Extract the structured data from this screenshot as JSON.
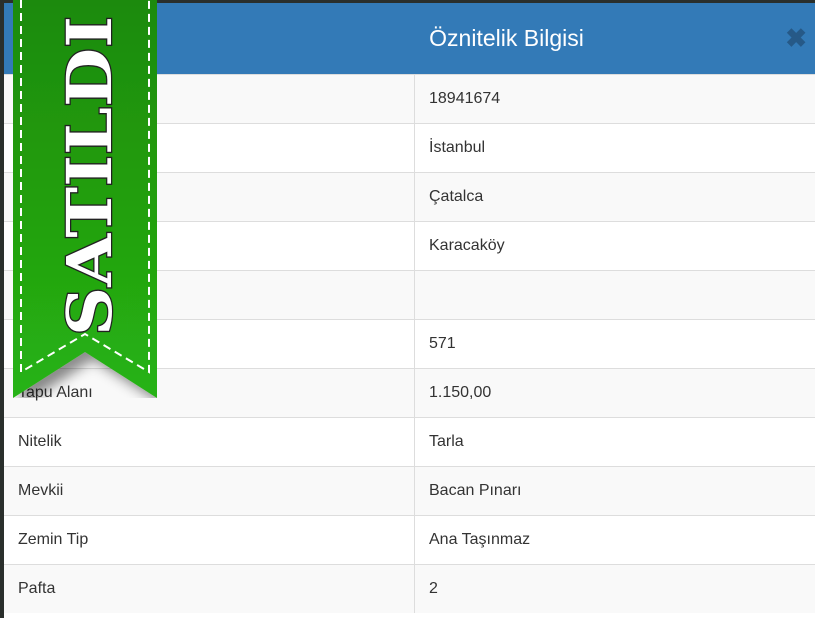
{
  "modal": {
    "title": "Öznitelik Bilgisi",
    "close_icon": "close-icon"
  },
  "badge": {
    "text": "SATILDI",
    "color": "#22a510"
  },
  "rows": [
    {
      "label": "",
      "value": "18941674"
    },
    {
      "label": "",
      "value": "İstanbul"
    },
    {
      "label": "",
      "value": "Çatalca"
    },
    {
      "label": "",
      "value": "Karacaköy"
    },
    {
      "label": "",
      "value": ""
    },
    {
      "label": "",
      "value": "571"
    },
    {
      "label": "Tapu Alanı",
      "value": "1.150,00"
    },
    {
      "label": "Nitelik",
      "value": "Tarla"
    },
    {
      "label": "Mevkii",
      "value": "Bacan Pınarı"
    },
    {
      "label": "Zemin Tip",
      "value": "Ana Taşınmaz"
    },
    {
      "label": "Pafta",
      "value": "2"
    }
  ]
}
